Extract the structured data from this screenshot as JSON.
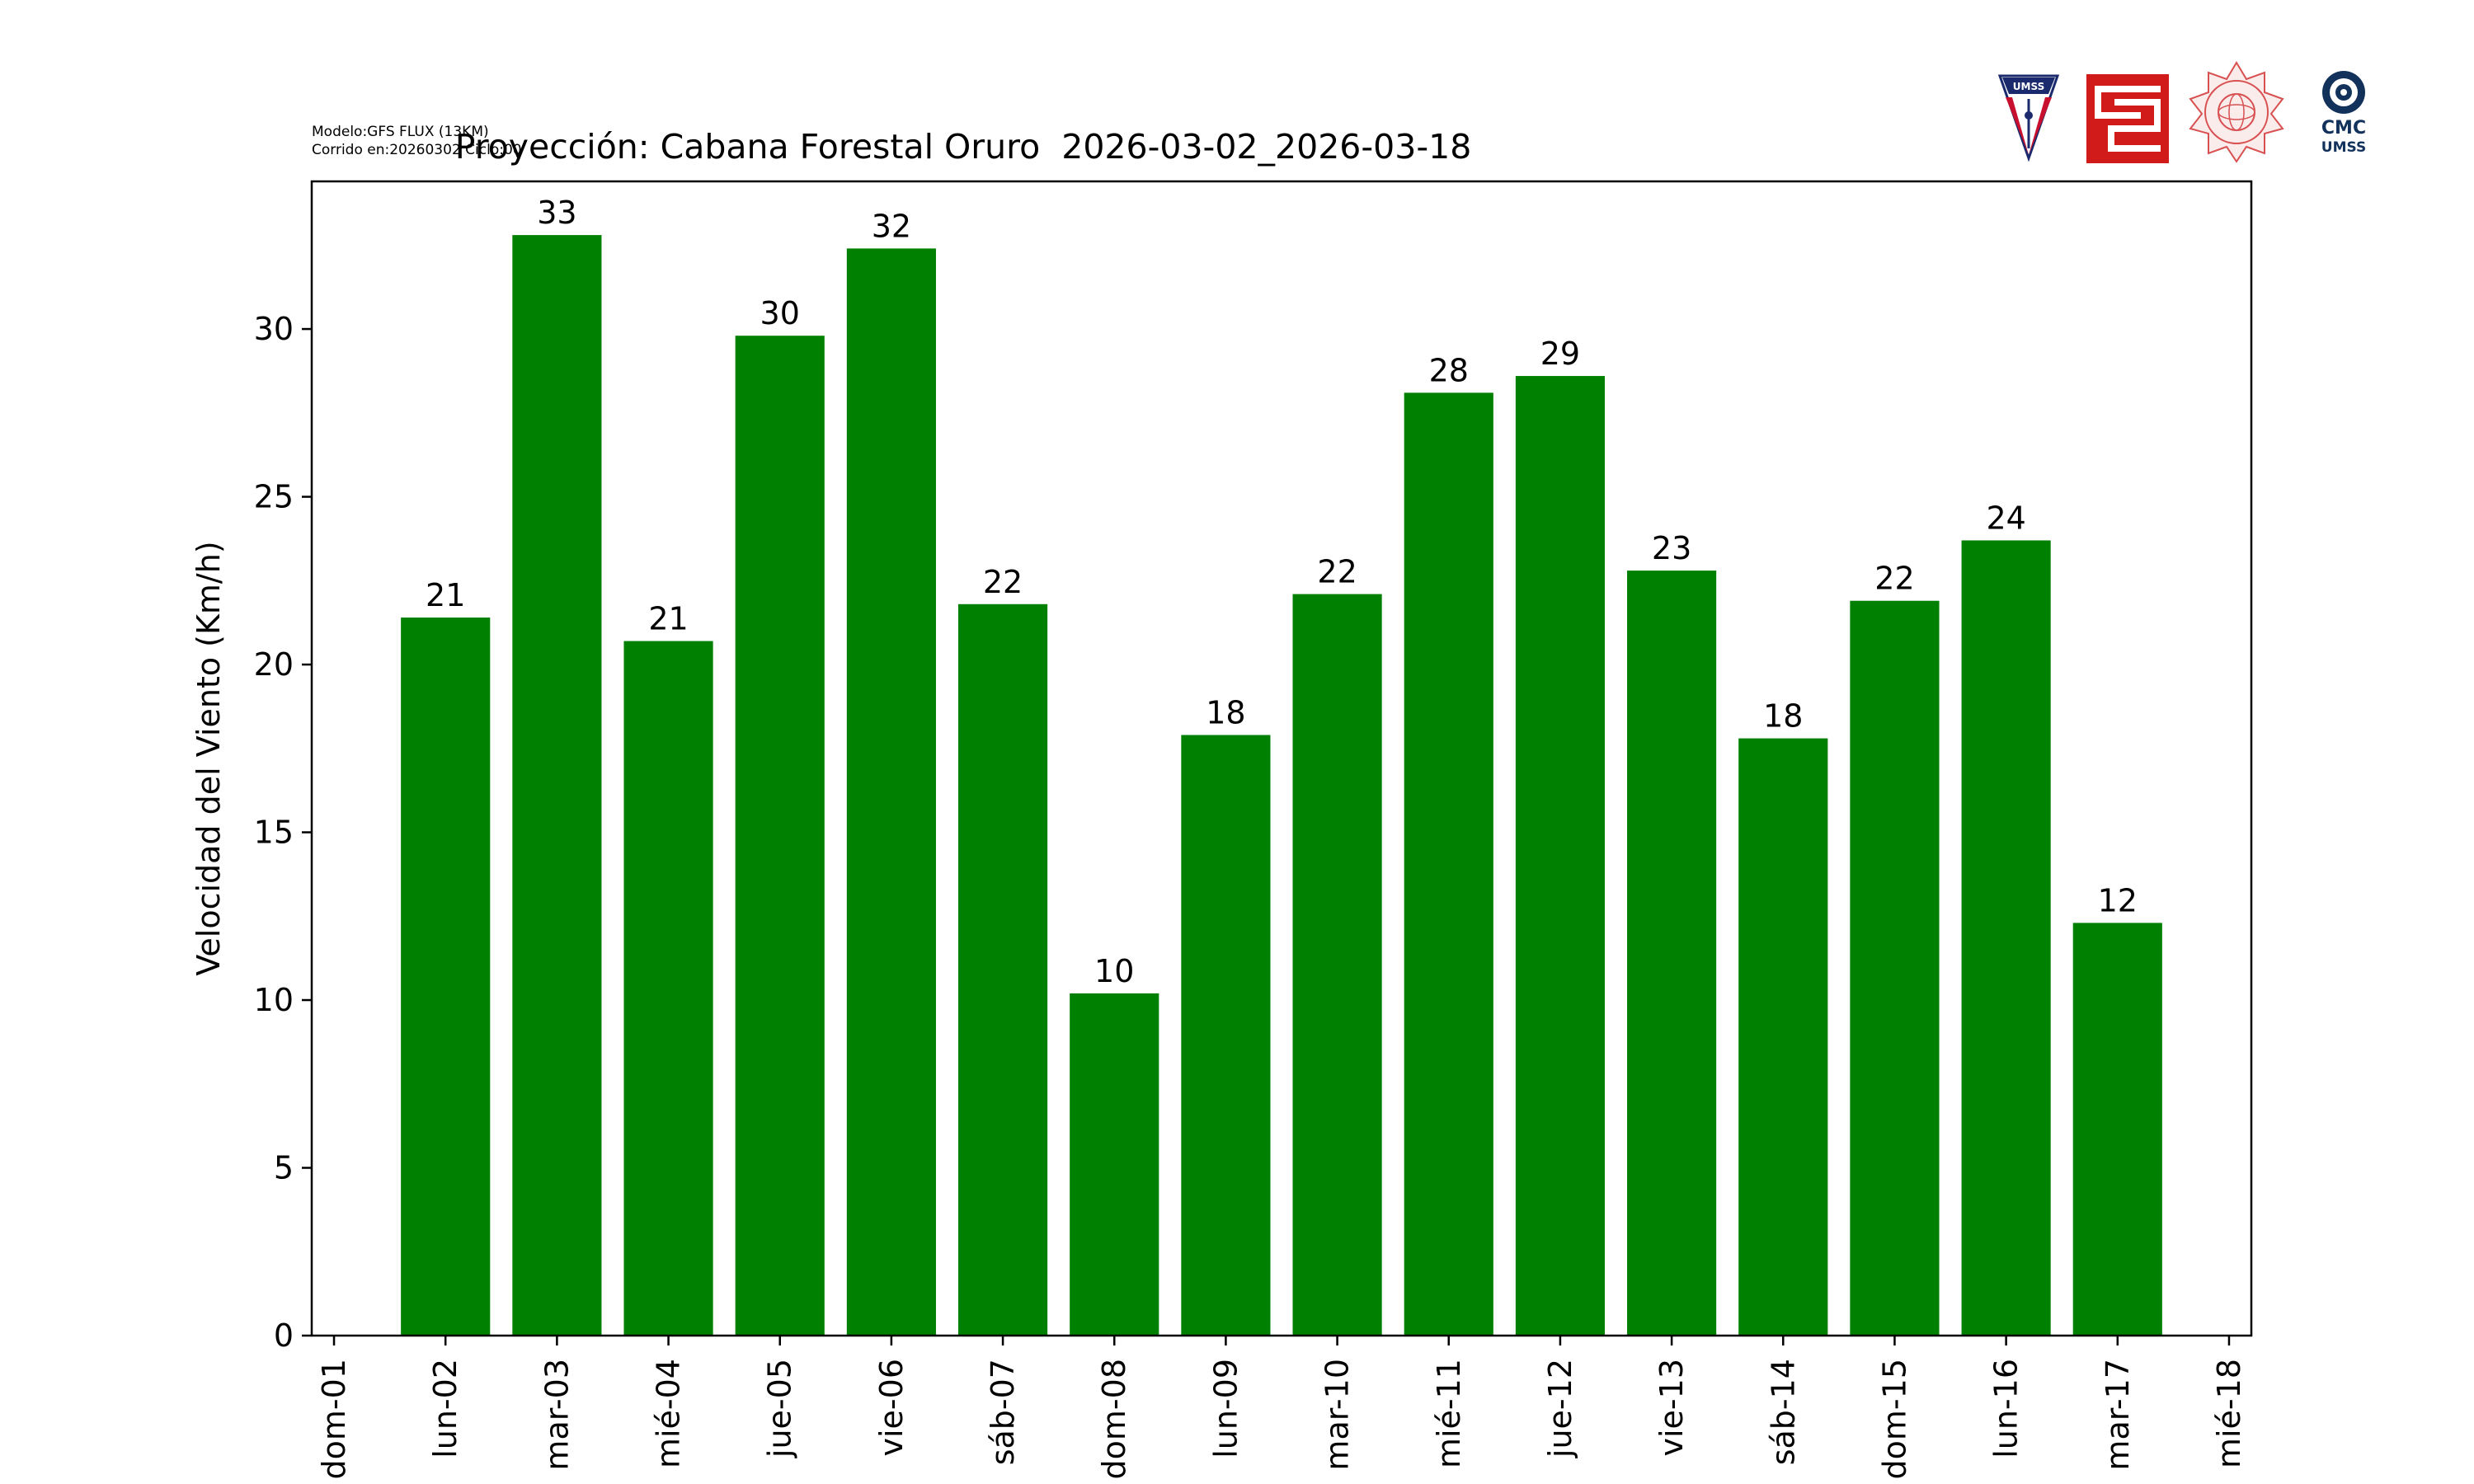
{
  "header": {
    "model_line": "Modelo:GFS FLUX (13KM)",
    "run_line": "Corrido en:20260302 Ciclo:00"
  },
  "logos": {
    "umss_shield": "UMSS",
    "cmc_line1": "CMC",
    "cmc_line2": "UMSS"
  },
  "chart_data": {
    "type": "bar",
    "title": "Proyección: Cabana Forestal Oruro  2026-03-02_2026-03-18",
    "xlabel": "",
    "ylabel": "Velocidad del Viento (Km/h)",
    "ylim": [
      0,
      34.4
    ],
    "yticks": [
      0,
      5,
      10,
      15,
      20,
      25,
      30
    ],
    "x_ticks": [
      "dom-01",
      "lun-02",
      "mar-03",
      "mié-04",
      "jue-05",
      "vie-06",
      "sáb-07",
      "dom-08",
      "lun-09",
      "mar-10",
      "mié-11",
      "jue-12",
      "vie-13",
      "sáb-14",
      "dom-15",
      "lun-16",
      "mar-17",
      "mié-18"
    ],
    "categories": [
      "lun-02",
      "mar-03",
      "mié-04",
      "jue-05",
      "vie-06",
      "sáb-07",
      "dom-08",
      "lun-09",
      "mar-10",
      "mié-11",
      "jue-12",
      "vie-13",
      "sáb-14",
      "dom-15",
      "lun-16",
      "mar-17"
    ],
    "values": [
      21.4,
      32.8,
      20.7,
      29.8,
      32.4,
      21.8,
      10.2,
      17.9,
      22.1,
      28.1,
      28.6,
      22.8,
      17.8,
      21.9,
      23.7,
      12.3
    ],
    "data_labels": [
      "21",
      "33",
      "21",
      "30",
      "32",
      "22",
      "10",
      "18",
      "22",
      "28",
      "29",
      "23",
      "18",
      "22",
      "24",
      "12"
    ],
    "bar_color": "#008000",
    "grid": false,
    "legend": "none"
  }
}
